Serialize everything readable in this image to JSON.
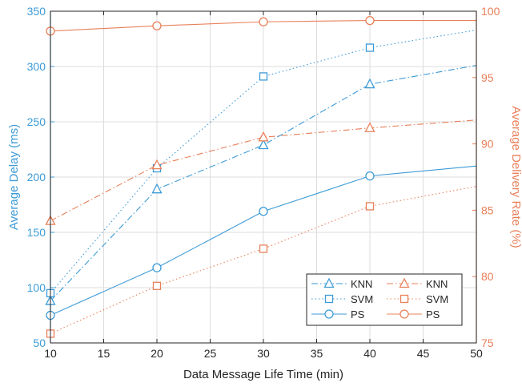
{
  "chart_data": {
    "type": "line",
    "xlabel": "Data Message Life Time (min)",
    "ylabel_left": "Average Delay (ms)",
    "ylabel_right": "Average Delivery Rate (%)",
    "xlim": [
      10,
      50
    ],
    "ylim_left": [
      50,
      350
    ],
    "ylim_right": [
      75,
      100
    ],
    "xticks": [
      10,
      15,
      20,
      25,
      30,
      35,
      40,
      45,
      50
    ],
    "yticks_left": [
      50,
      100,
      150,
      200,
      250,
      300,
      350
    ],
    "yticks_right": [
      75,
      80,
      85,
      90,
      95,
      100
    ],
    "grid": true,
    "legend_position": "bottom-right",
    "x": [
      10,
      20,
      30,
      40,
      50
    ],
    "series": [
      {
        "name": "KNN",
        "axis": "left",
        "marker": "triangle",
        "dash": "dashdot",
        "color": "#3d9bd6",
        "values": [
          88,
          189,
          229,
          284,
          301
        ]
      },
      {
        "name": "SVM",
        "axis": "left",
        "marker": "square",
        "dash": "dotted",
        "color": "#3d9bd6",
        "values": [
          95,
          208,
          291,
          317,
          333
        ]
      },
      {
        "name": "PS",
        "axis": "left",
        "marker": "circle",
        "dash": "solid",
        "color": "#3d9bd6",
        "values": [
          75,
          118,
          169,
          201,
          210
        ]
      },
      {
        "name": "KNN",
        "axis": "right",
        "marker": "triangle",
        "dash": "dashdot",
        "color": "#e8805a",
        "values": [
          84.2,
          88.4,
          90.5,
          91.2,
          91.8
        ]
      },
      {
        "name": "SVM",
        "axis": "right",
        "marker": "square",
        "dash": "dotted",
        "color": "#e8805a",
        "values": [
          75.7,
          79.3,
          82.1,
          85.3,
          86.8
        ]
      },
      {
        "name": "PS",
        "axis": "right",
        "marker": "circle",
        "dash": "solid",
        "color": "#e8805a",
        "values": [
          98.5,
          98.9,
          99.2,
          99.3,
          99.3
        ]
      }
    ],
    "colors": {
      "left_axis": "#3d9bd6",
      "right_axis": "#e8805a",
      "grid": "#dcdcdc",
      "frame": "#262626"
    }
  }
}
